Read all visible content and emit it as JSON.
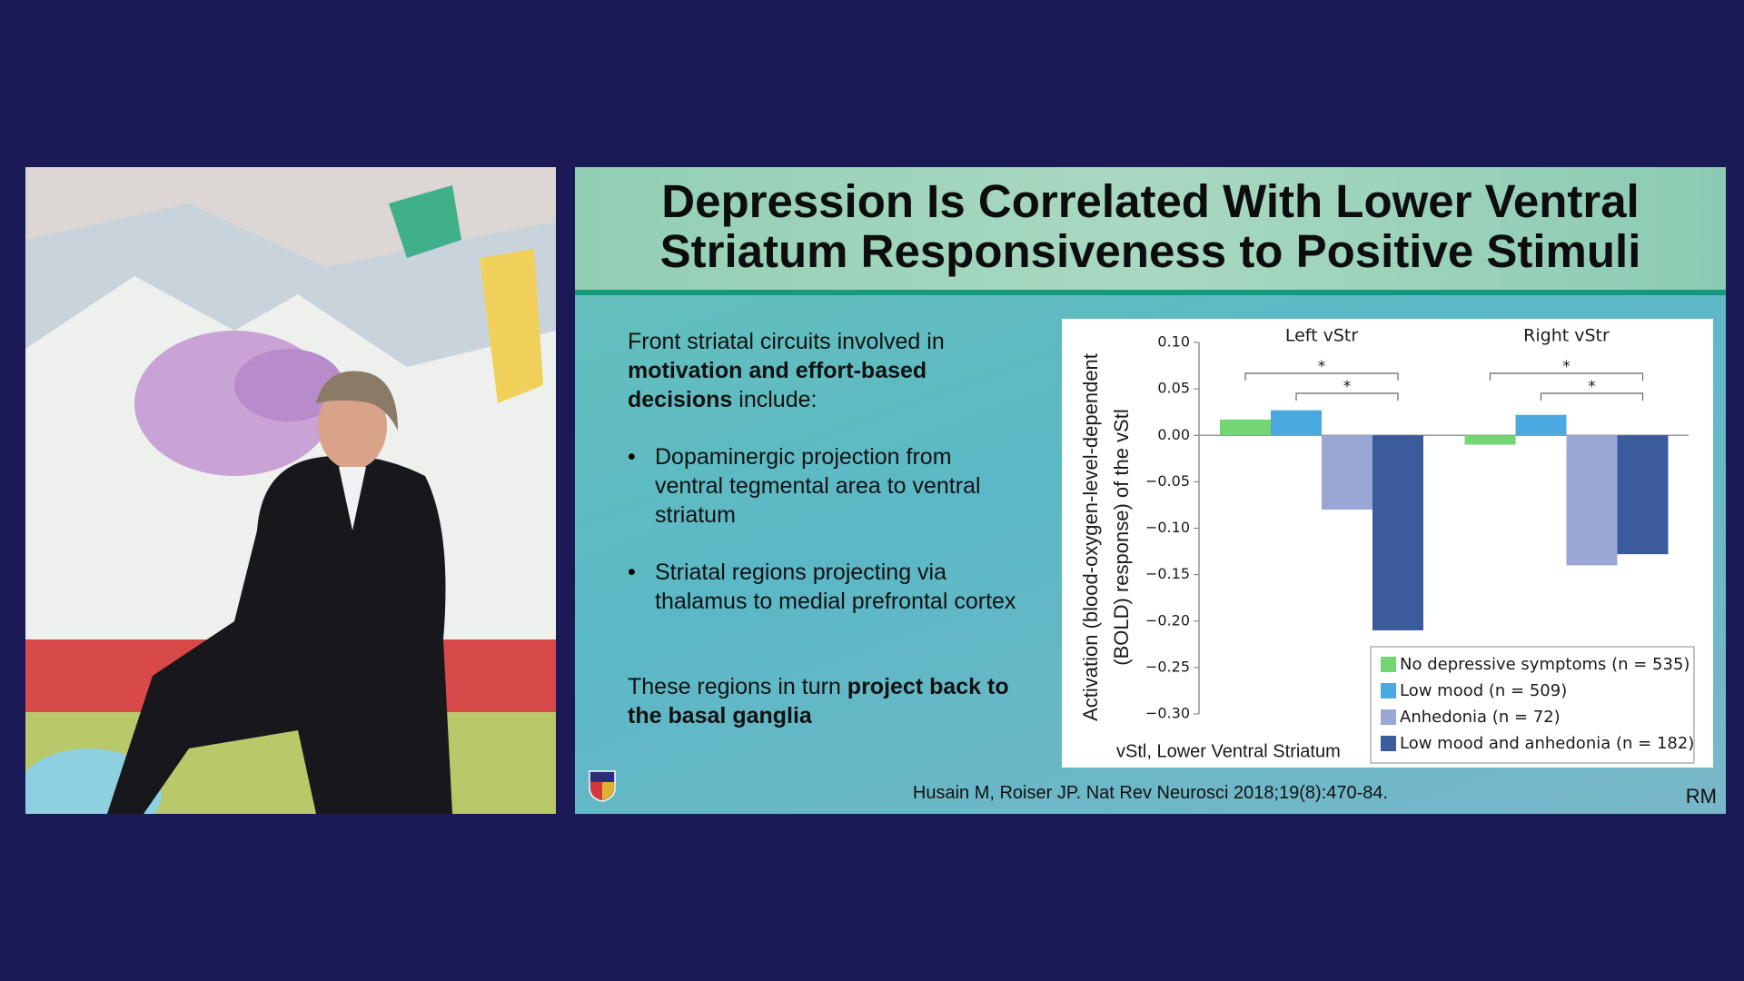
{
  "slide": {
    "title": [
      "Depression Is Correlated With Lower Ventral",
      "Striatum Responsiveness to Positive Stimuli"
    ],
    "intro": [
      "Front striatal circuits involved in ",
      "motivation and effort-based decisions",
      " include:"
    ],
    "bullets": [
      "Dopaminergic projection from ventral tegmental area to ventral striatum",
      "Striatal regions projecting via thalamus to medial prefrontal cortex"
    ],
    "closing": [
      "These regions in turn ",
      "project back to the basal ganglia"
    ],
    "citation": "Husain M, Roiser JP. Nat Rev Neurosci 2018;19(8):470-84.",
    "initials": "RM"
  },
  "chart_data": {
    "type": "bar",
    "categories": [
      "Left vStr",
      "Right vStr"
    ],
    "series": [
      {
        "name": "No depressive symptoms (n = 535)",
        "color": "#72d672",
        "values": [
          0.017,
          -0.01
        ]
      },
      {
        "name": "Low mood (n = 509)",
        "color": "#4aaadf",
        "values": [
          0.027,
          0.022
        ]
      },
      {
        "name": "Anhedonia (n = 72)",
        "color": "#9aa7d4",
        "values": [
          -0.08,
          -0.14
        ]
      },
      {
        "name": "Low mood and anhedonia (n = 182)",
        "color": "#3b5b9d",
        "values": [
          -0.21,
          -0.128
        ]
      }
    ],
    "y_label": [
      "Activation (blood-oxygen-level-dependent",
      "(BOLD) response) of the vStl"
    ],
    "x_label": "vStl, Lower Ventral Striatum",
    "annotations": [
      "*",
      "*",
      "*",
      "*"
    ],
    "ylim": [
      -0.3,
      0.1
    ],
    "yticks": [
      {
        "value": 0.1,
        "label": "0.10"
      },
      0.05,
      {
        "value": 0,
        "label": "0.00"
      },
      {
        "value": -0.05,
        "label": "−0.05"
      },
      {
        "value": -0.1,
        "label": "−0.10"
      },
      {
        "value": -0.15,
        "label": "−0.15"
      },
      {
        "value": -0.2,
        "label": "−0.20"
      },
      {
        "value": -0.25,
        "label": "−0.25"
      },
      {
        "value": -0.3,
        "label": "−0.30"
      }
    ],
    "legend": "lower right"
  }
}
